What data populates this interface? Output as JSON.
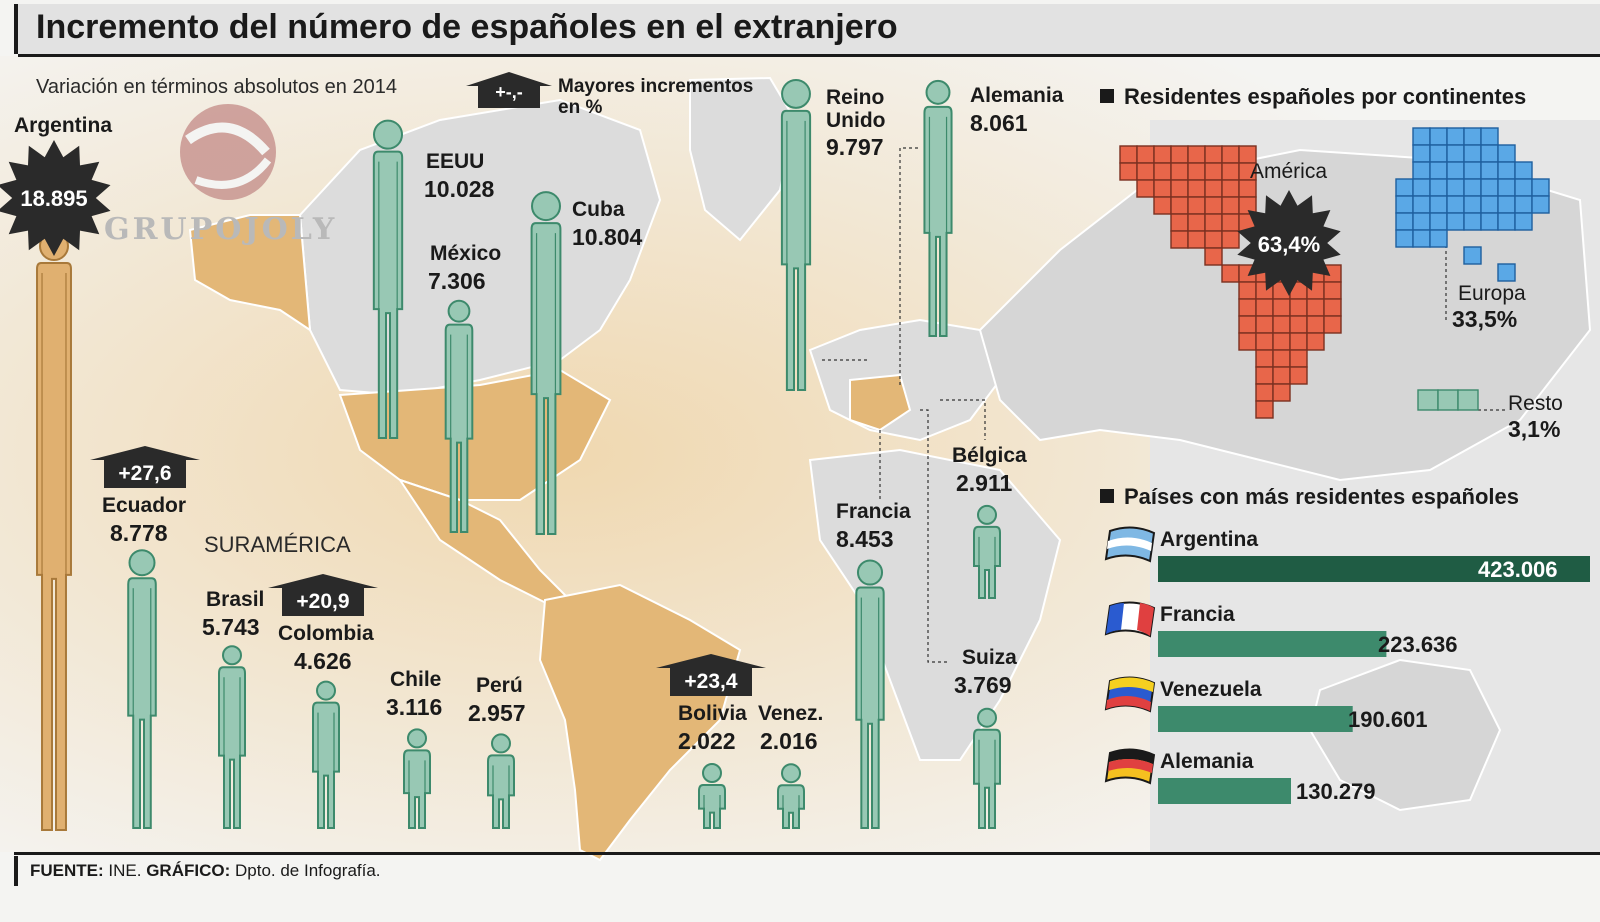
{
  "title": "Incremento del número de españoles en el extranjero",
  "subtitle": "Variación en términos absolutos en 2014",
  "legend_increments": {
    "badge": "+-,-",
    "label_line1": "Mayores incrementos",
    "label_line2": "en %"
  },
  "region_label": "SURAMÉRICA",
  "logo": "GRUPOJOLY",
  "footer": {
    "source_label": "FUENTE:",
    "source": "INE.",
    "graphic_label": "GRÁFICO:",
    "graphic": "Dpto. de Infografía."
  },
  "colors": {
    "figure_green": "#98c8b4",
    "figure_green_stroke": "#3d8a6c",
    "argentina_figure": "#e0b070",
    "map_land_americas": "#e3b777",
    "map_land_other": "#dcdcdc",
    "america_grid": "#e8664a",
    "europa_grid": "#5aa8e6",
    "resto_grid": "#98c8b4",
    "bar_dark": "#1f5c44",
    "bar_mid": "#3d8a6c",
    "badge_dark": "#2a2a2a"
  },
  "chart_data": [
    {
      "type": "bar",
      "title": "Variación en términos absolutos en 2014",
      "categories": [
        "Argentina",
        "EEUU",
        "México",
        "Cuba",
        "Reino Unido",
        "Alemania",
        "Ecuador",
        "Brasil",
        "Colombia",
        "Chile",
        "Perú",
        "Bolivia",
        "Venez.",
        "Francia",
        "Bélgica",
        "Suiza"
      ],
      "values": [
        18895,
        10028,
        7306,
        10804,
        9797,
        8061,
        8778,
        5743,
        4626,
        3116,
        2957,
        2022,
        2016,
        8453,
        2911,
        3769
      ],
      "value_labels": [
        "18.895",
        "10.028",
        "7.306",
        "10.804",
        "9.797",
        "8.061",
        "8.778",
        "5.743",
        "4.626",
        "3.116",
        "2.957",
        "2.022",
        "2.016",
        "8.453",
        "2.911",
        "3.769"
      ],
      "increments_pct": [
        {
          "country": "Ecuador",
          "label": "+27,6"
        },
        {
          "country": "Colombia",
          "label": "+20,9"
        },
        {
          "country": "Bolivia",
          "label": "+23,4"
        }
      ]
    },
    {
      "type": "pie",
      "title": "Residentes españoles por continentes",
      "categories": [
        "América",
        "Europa",
        "Resto"
      ],
      "values": [
        63.4,
        33.5,
        3.1
      ],
      "value_labels": [
        "63,4%",
        "33,5%",
        "3,1%"
      ]
    },
    {
      "type": "bar",
      "title": "Países con más residentes españoles",
      "categories": [
        "Argentina",
        "Francia",
        "Venezuela",
        "Alemania"
      ],
      "values": [
        423006,
        223636,
        190601,
        130279
      ],
      "value_labels": [
        "423.006",
        "223.636",
        "190.601",
        "130.279"
      ]
    }
  ]
}
